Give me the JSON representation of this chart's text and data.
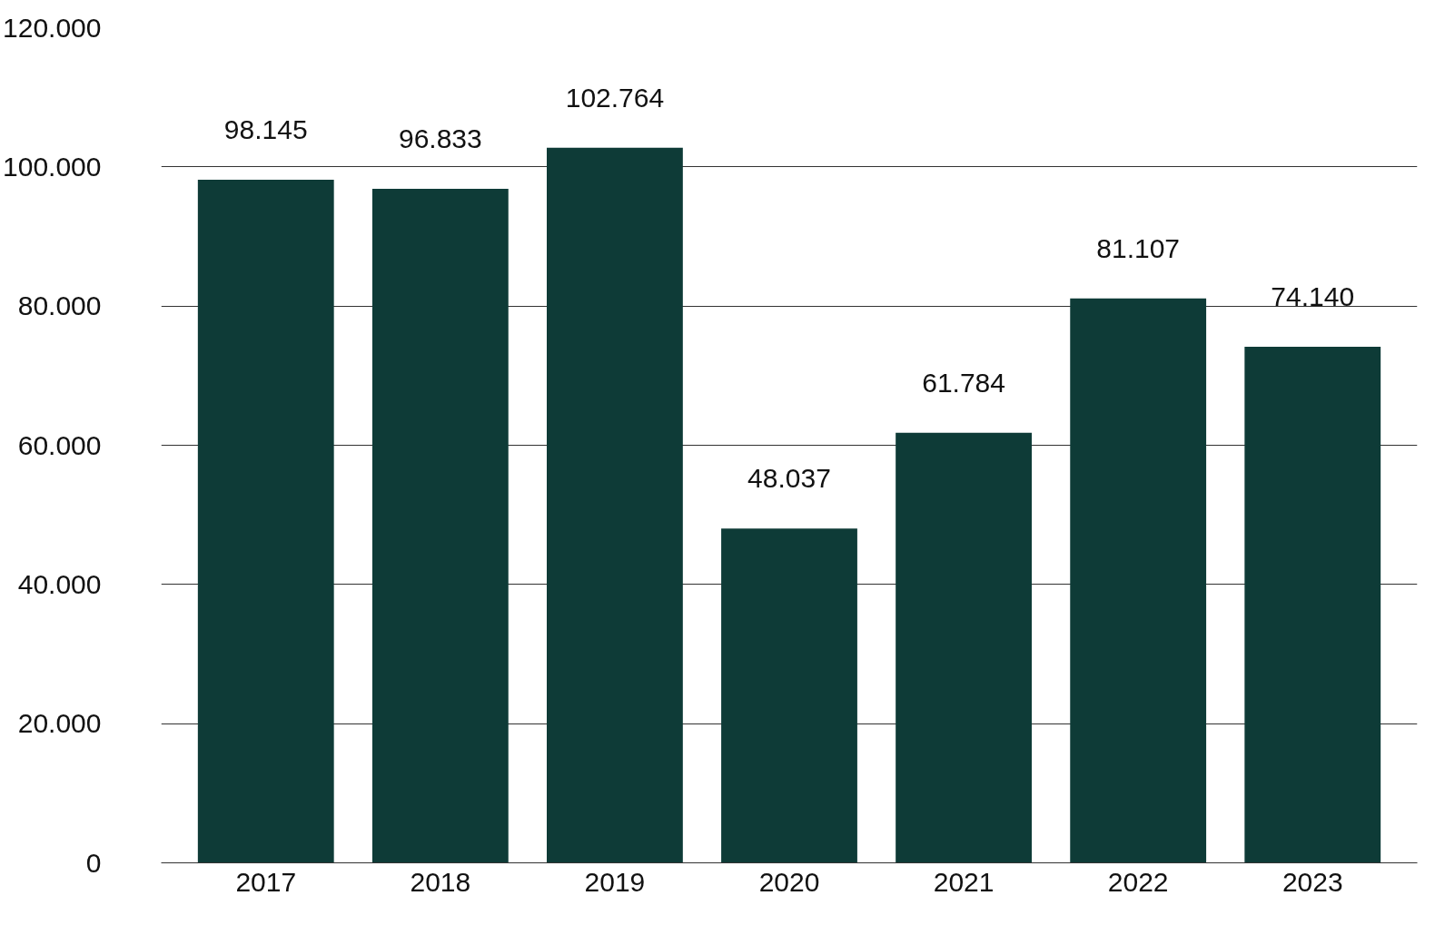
{
  "chart_data": {
    "type": "bar",
    "categories": [
      "2017",
      "2018",
      "2019",
      "2020",
      "2021",
      "2022",
      "2023"
    ],
    "values": [
      98145,
      96833,
      102764,
      48037,
      61784,
      81107,
      74140
    ],
    "value_labels": [
      "98.145",
      "96.833",
      "102.764",
      "48.037",
      "61.784",
      "81.107",
      "74.140"
    ],
    "color": "#0e3b37",
    "ylim": [
      0,
      120000
    ],
    "yticks": [
      0,
      {
        "value": 20000,
        "label": "20.000"
      },
      {
        "value": 40000,
        "label": "40.000"
      },
      {
        "value": 60000,
        "label": "60.000"
      },
      {
        "value": 80000,
        "label": "80.000"
      },
      {
        "value": 100000,
        "label": "100.000"
      },
      {
        "value": 120000,
        "label": "120.000"
      }
    ],
    "grid": "y",
    "legend": false
  }
}
